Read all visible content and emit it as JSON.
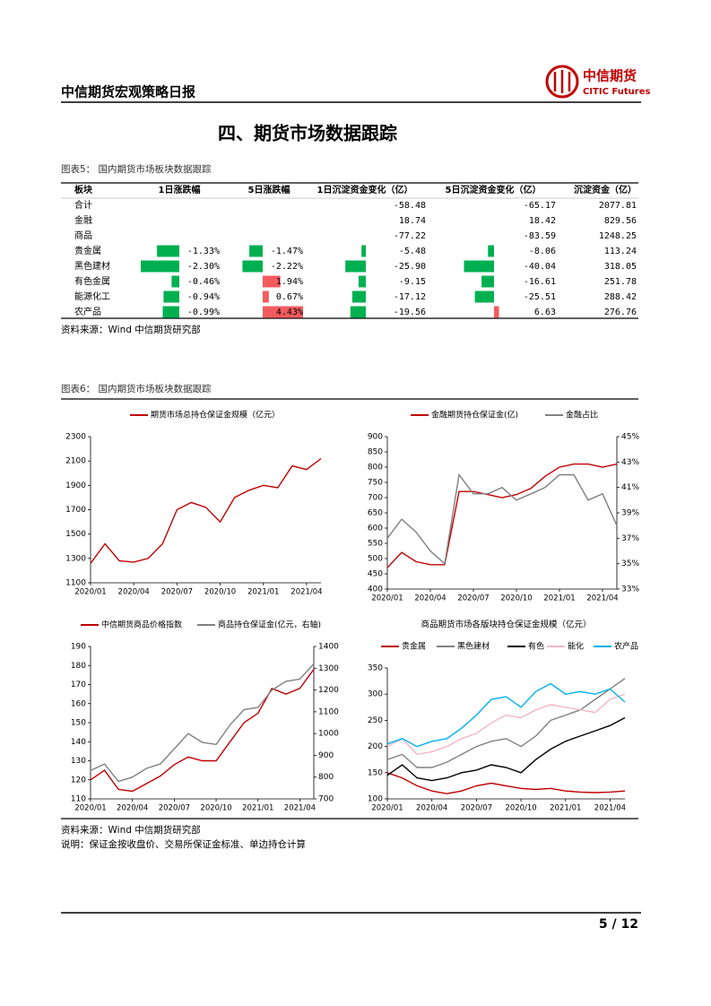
{
  "header": {
    "title": "中信期货宏观策略日报",
    "logo_name": "中信期货",
    "logo_en": "CITIC Futures"
  },
  "section_title": "四、期货市场数据跟踪",
  "table": {
    "caption": "图表5： 国内期货市场板块数据跟踪",
    "columns": [
      "板块",
      "1日涨跌幅",
      "5日涨跌幅",
      "1日沉淀资金变化（亿）",
      "5日沉淀资金变化（亿）",
      "沉淀资金（亿）"
    ],
    "rows": [
      [
        "合计",
        null,
        null,
        "-58.48",
        "-65.17",
        "2077.81"
      ],
      [
        "金融",
        null,
        null,
        "18.74",
        "18.42",
        "829.56"
      ],
      [
        "商品",
        null,
        null,
        "-77.22",
        "-83.59",
        "1248.25"
      ],
      [
        "贵金属",
        "-1.33%",
        "-1.47%",
        "-5.48",
        "-8.06",
        "113.24"
      ],
      [
        "黑色建材",
        "-2.30%",
        "-2.22%",
        "-25.90",
        "-40.04",
        "318.05"
      ],
      [
        "有色金属",
        "-0.46%",
        "1.94%",
        "-9.15",
        "-16.61",
        "251.78"
      ],
      [
        "能源化工",
        "-0.94%",
        "0.67%",
        "-17.12",
        "-25.51",
        "288.42"
      ],
      [
        "农产品",
        "-0.99%",
        "4.43%",
        "-19.56",
        "6.63",
        "276.76"
      ]
    ],
    "source": "资料来源：Wind 中信期货研究部"
  },
  "figure_caption": "图表6： 国内期货市场板块数据跟踪",
  "chart_data": [
    {
      "type": "line",
      "x": [
        "2020/01",
        "2020/02",
        "2020/03",
        "2020/04",
        "2020/05",
        "2020/06",
        "2020/07",
        "2020/08",
        "2020/09",
        "2020/10",
        "2020/11",
        "2020/12",
        "2021/01",
        "2021/02",
        "2021/03",
        "2021/04",
        "2021/05"
      ],
      "xticks": [
        "2020/01",
        "2020/04",
        "2020/07",
        "2020/10",
        "2021/01",
        "2021/04"
      ],
      "ylim": [
        1100,
        2300
      ],
      "yticks": [
        1100,
        1300,
        1500,
        1700,
        1900,
        2100,
        2300
      ],
      "series": [
        {
          "name": "期货市场总持仓保证金规模（亿元）",
          "color": "#c00000",
          "values": [
            1260,
            1420,
            1280,
            1270,
            1300,
            1420,
            1700,
            1760,
            1720,
            1600,
            1800,
            1860,
            1900,
            1880,
            2060,
            2030,
            2120
          ]
        }
      ]
    },
    {
      "type": "line",
      "x": [
        "2020/01",
        "2020/02",
        "2020/03",
        "2020/04",
        "2020/05",
        "2020/06",
        "2020/07",
        "2020/08",
        "2020/09",
        "2020/10",
        "2020/11",
        "2020/12",
        "2021/01",
        "2021/02",
        "2021/03",
        "2021/04",
        "2021/05"
      ],
      "xticks": [
        "2020/01",
        "2020/04",
        "2020/07",
        "2020/10",
        "2021/01",
        "2021/04"
      ],
      "ylim": [
        400,
        900
      ],
      "yticks": [
        400,
        450,
        500,
        550,
        600,
        650,
        700,
        750,
        800,
        850,
        900
      ],
      "y2lim": [
        33,
        45
      ],
      "y2ticks": [
        {
          "value": 33,
          "label": "33%"
        },
        {
          "value": 35,
          "label": "35%"
        },
        {
          "value": 37,
          "label": "37%"
        },
        {
          "value": 39,
          "label": "39%"
        },
        {
          "value": 41,
          "label": "41%"
        },
        {
          "value": 43,
          "label": "43%"
        },
        {
          "value": 45,
          "label": "45%"
        }
      ],
      "series": [
        {
          "name": "金融期货持仓保证金(亿)",
          "color": "#c00000",
          "values": [
            470,
            520,
            490,
            480,
            480,
            720,
            720,
            710,
            700,
            710,
            730,
            770,
            800,
            810,
            810,
            800,
            810
          ]
        },
        {
          "name": "金融占比",
          "color": "#808080",
          "axis": "y2",
          "values": [
            37,
            38.5,
            37.5,
            36,
            35,
            42,
            40.5,
            40.5,
            41,
            40,
            40.5,
            41,
            42,
            42,
            40,
            40.5,
            38
          ]
        }
      ]
    },
    {
      "type": "line",
      "x": [
        "2020/01",
        "2020/02",
        "2020/03",
        "2020/04",
        "2020/05",
        "2020/06",
        "2020/07",
        "2020/08",
        "2020/09",
        "2020/10",
        "2020/11",
        "2020/12",
        "2021/01",
        "2021/02",
        "2021/03",
        "2021/04",
        "2021/05"
      ],
      "xticks": [
        "2020/01",
        "2020/04",
        "2020/07",
        "2020/10",
        "2021/01",
        "2021/04"
      ],
      "ylim": [
        110,
        190
      ],
      "yticks": [
        110,
        120,
        130,
        140,
        150,
        160,
        170,
        180,
        190
      ],
      "y2lim": [
        700,
        1400
      ],
      "y2ticks": [
        700,
        800,
        900,
        1000,
        1100,
        1200,
        1300,
        1400
      ],
      "series": [
        {
          "name": "中信期货商品价格指数",
          "color": "#c00000",
          "values": [
            120,
            125,
            115,
            114,
            118,
            122,
            128,
            132,
            130,
            130,
            140,
            150,
            155,
            168,
            165,
            168,
            178
          ]
        },
        {
          "name": "商品持仓保证金(亿元，右轴)",
          "color": "#808080",
          "axis": "y2",
          "values": [
            830,
            860,
            780,
            800,
            840,
            860,
            930,
            1000,
            960,
            950,
            1040,
            1110,
            1120,
            1200,
            1240,
            1250,
            1320
          ]
        }
      ]
    },
    {
      "type": "line",
      "title": "商品期货市场各版块持仓保证金规模（亿元）",
      "x": [
        "2020/01",
        "2020/02",
        "2020/03",
        "2020/04",
        "2020/05",
        "2020/06",
        "2020/07",
        "2020/08",
        "2020/09",
        "2020/10",
        "2020/11",
        "2020/12",
        "2021/01",
        "2021/02",
        "2021/03",
        "2021/04",
        "2021/05"
      ],
      "xticks": [
        "2020/01",
        "2020/04",
        "2020/07",
        "2020/10",
        "2021/01",
        "2021/04"
      ],
      "ylim": [
        100,
        350
      ],
      "yticks": [
        100,
        150,
        200,
        250,
        300,
        350
      ],
      "series": [
        {
          "name": "贵金属",
          "color": "#c00000",
          "values": [
            150,
            140,
            125,
            115,
            110,
            115,
            125,
            130,
            125,
            120,
            118,
            120,
            115,
            113,
            112,
            113,
            115
          ]
        },
        {
          "name": "黑色建材",
          "color": "#808080",
          "values": [
            175,
            185,
            160,
            160,
            170,
            185,
            200,
            210,
            215,
            200,
            220,
            250,
            260,
            270,
            290,
            310,
            330
          ]
        },
        {
          "name": "有色",
          "color": "#000000",
          "values": [
            145,
            165,
            140,
            135,
            140,
            150,
            155,
            165,
            160,
            150,
            175,
            195,
            210,
            220,
            230,
            240,
            255
          ]
        },
        {
          "name": "能化",
          "color": "#f4b6c2",
          "values": [
            200,
            215,
            185,
            190,
            200,
            215,
            225,
            245,
            260,
            255,
            270,
            280,
            275,
            270,
            265,
            290,
            300
          ]
        },
        {
          "name": "农产品",
          "color": "#00b0f0",
          "values": [
            205,
            215,
            200,
            210,
            215,
            235,
            260,
            290,
            295,
            275,
            305,
            320,
            300,
            305,
            300,
            310,
            285
          ]
        }
      ]
    }
  ],
  "notes": [
    "资料来源：Wind 中信期货研究部",
    "说明：保证金按收盘价、交易所保证金标准、单边持仓计算"
  ],
  "page": "5 / 12"
}
